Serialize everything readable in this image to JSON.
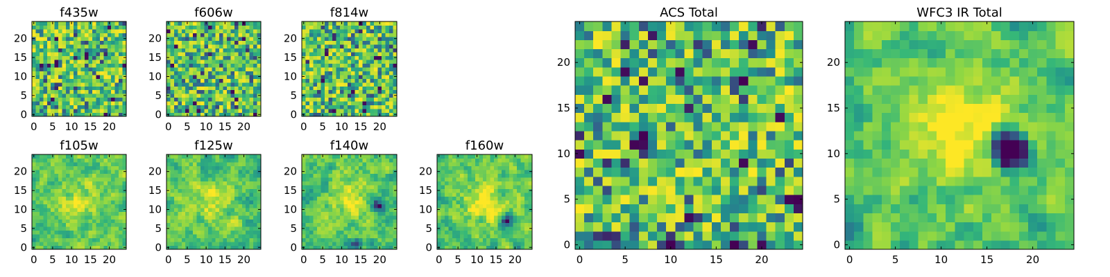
{
  "figure": {
    "background": "#ffffff"
  },
  "colormap": {
    "name": "viridis",
    "colors": [
      "#440154",
      "#31688e",
      "#21918c",
      "#35b779",
      "#90d743",
      "#fde725"
    ]
  },
  "chart_data": [
    {
      "type": "heatmap",
      "title": "f435w",
      "size": 25,
      "xticks": [
        0,
        5,
        10,
        15,
        20
      ],
      "yticks": [
        0,
        5,
        10,
        15,
        20
      ],
      "xlim": [
        0,
        24
      ],
      "ylim": [
        0,
        24
      ],
      "pattern": "noise",
      "seed": 11,
      "blobs": []
    },
    {
      "type": "heatmap",
      "title": "f606w",
      "size": 25,
      "xticks": [
        0,
        5,
        10,
        15,
        20
      ],
      "yticks": [
        0,
        5,
        10,
        15,
        20
      ],
      "xlim": [
        0,
        24
      ],
      "ylim": [
        0,
        24
      ],
      "pattern": "noise",
      "seed": 23,
      "blobs": []
    },
    {
      "type": "heatmap",
      "title": "f814w",
      "size": 25,
      "xticks": [
        0,
        5,
        10,
        15,
        20
      ],
      "yticks": [
        0,
        5,
        10,
        15,
        20
      ],
      "xlim": [
        0,
        24
      ],
      "ylim": [
        0,
        24
      ],
      "pattern": "noise",
      "seed": 37,
      "blobs": []
    },
    {
      "type": "heatmap",
      "title": "f105w",
      "size": 25,
      "xticks": [
        0,
        5,
        10,
        15,
        20
      ],
      "yticks": [
        0,
        5,
        10,
        15,
        20
      ],
      "xlim": [
        0,
        24
      ],
      "ylim": [
        0,
        24
      ],
      "pattern": "smooth",
      "seed": 41,
      "blobs": [
        [
          12,
          12,
          4,
          0.25
        ]
      ]
    },
    {
      "type": "heatmap",
      "title": "f125w",
      "size": 25,
      "xticks": [
        0,
        5,
        10,
        15,
        20
      ],
      "yticks": [
        0,
        5,
        10,
        15,
        20
      ],
      "xlim": [
        0,
        24
      ],
      "ylim": [
        0,
        24
      ],
      "pattern": "smooth",
      "seed": 53,
      "blobs": [
        [
          12,
          12,
          4,
          0.2
        ]
      ]
    },
    {
      "type": "heatmap",
      "title": "f140w",
      "size": 25,
      "xticks": [
        0,
        5,
        10,
        15,
        20
      ],
      "yticks": [
        0,
        5,
        10,
        15,
        20
      ],
      "xlim": [
        0,
        24
      ],
      "ylim": [
        0,
        24
      ],
      "pattern": "smooth",
      "seed": 67,
      "blobs": [
        [
          12,
          13,
          4,
          0.25
        ],
        [
          20,
          11,
          1.5,
          -0.6
        ],
        [
          14,
          1,
          1.2,
          -0.5
        ]
      ]
    },
    {
      "type": "heatmap",
      "title": "f160w",
      "size": 25,
      "xticks": [
        0,
        5,
        10,
        15,
        20
      ],
      "yticks": [
        0,
        5,
        10,
        15,
        20
      ],
      "xlim": [
        0,
        24
      ],
      "ylim": [
        0,
        24
      ],
      "pattern": "smooth",
      "seed": 79,
      "blobs": [
        [
          12,
          12,
          4,
          0.35
        ],
        [
          18,
          7,
          1.2,
          -0.6
        ]
      ]
    },
    {
      "type": "heatmap",
      "title": "ACS Total",
      "size": 25,
      "xticks": [
        0,
        5,
        10,
        15,
        20
      ],
      "yticks": [
        0,
        5,
        10,
        15,
        20
      ],
      "xlim": [
        0,
        24
      ],
      "ylim": [
        0,
        24
      ],
      "pattern": "noise",
      "seed": 97,
      "blobs": [
        [
          7,
          12,
          0.8,
          -0.9
        ],
        [
          10,
          0,
          0.6,
          -0.9
        ],
        [
          17,
          0,
          0.8,
          -0.9
        ],
        [
          24,
          5,
          0.6,
          -0.9
        ],
        [
          18,
          18,
          0.6,
          -0.8
        ],
        [
          12,
          15,
          0.6,
          -0.7
        ]
      ]
    },
    {
      "type": "heatmap",
      "title": "WFC3 IR Total",
      "size": 25,
      "xticks": [
        0,
        5,
        10,
        15,
        20
      ],
      "yticks": [
        0,
        5,
        10,
        15,
        20
      ],
      "xlim": [
        0,
        24
      ],
      "ylim": [
        0,
        24
      ],
      "pattern": "smooth",
      "seed": 113,
      "blobs": [
        [
          12,
          13,
          4,
          0.35
        ],
        [
          17,
          11,
          1.2,
          -0.9
        ],
        [
          18,
          10,
          1.2,
          -0.8
        ],
        [
          0,
          2,
          1,
          -0.5
        ]
      ]
    }
  ]
}
